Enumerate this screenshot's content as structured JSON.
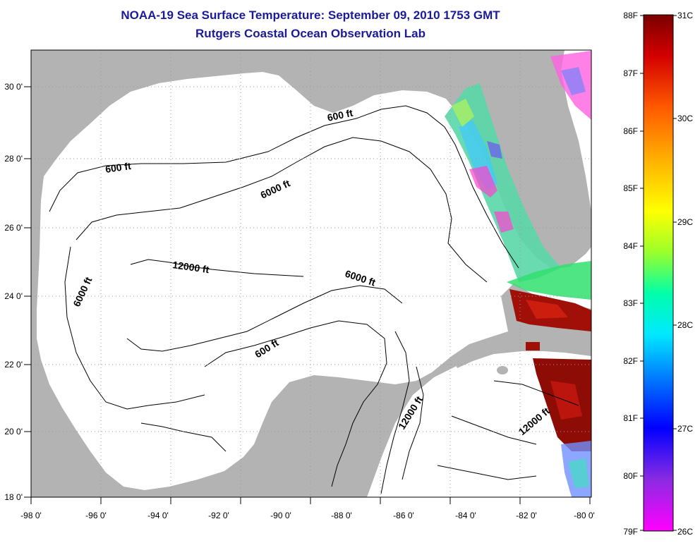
{
  "header": {
    "title": "NOAA-19 Sea Surface Temperature:  September 09, 2010 1753 GMT",
    "subtitle": "Rutgers Coastal Ocean Observation Lab"
  },
  "map": {
    "longitude_labels": [
      "-98 0'",
      "-96 0'",
      "-94 0'",
      "-92 0'",
      "-90 0'",
      "-88 0'",
      "-86 0'",
      "-84 0'",
      "-82 0'",
      "-80 0'"
    ],
    "latitude_labels": [
      "30 0'",
      "28 0'",
      "26 0'",
      "24 0'",
      "22 0'",
      "20 0'",
      "18 0'"
    ],
    "contour_labels": {
      "c600_north": "600 ft",
      "c600_west": "600 ft",
      "c600_south": "600 ft",
      "c6000_north": "6000 ft",
      "c6000_west": "6000 ft",
      "c6000_east": "6000 ft",
      "c12000_center": "12000 ft",
      "c12000_channel": "12000 ft",
      "c12000_caribbean": "12000 ft"
    },
    "colors": {
      "land": "#b3b3b3",
      "water": "#ffffff",
      "grid": "#9a9a9a"
    }
  },
  "colorbar": {
    "f_labels": [
      "88F",
      "87F",
      "86F",
      "85F",
      "84F",
      "83F",
      "82F",
      "81F",
      "80F",
      "79F"
    ],
    "c_labels": [
      "31C",
      "30C",
      "29C",
      "28C",
      "27C",
      "26C"
    ],
    "gradient_colors": [
      "#7a0000",
      "#d40000",
      "#ff5a00",
      "#ffb000",
      "#ffff00",
      "#9aff2a",
      "#00ffaa",
      "#00e8ff",
      "#0080ff",
      "#0000ff",
      "#8a2be2",
      "#ff00ff"
    ]
  }
}
